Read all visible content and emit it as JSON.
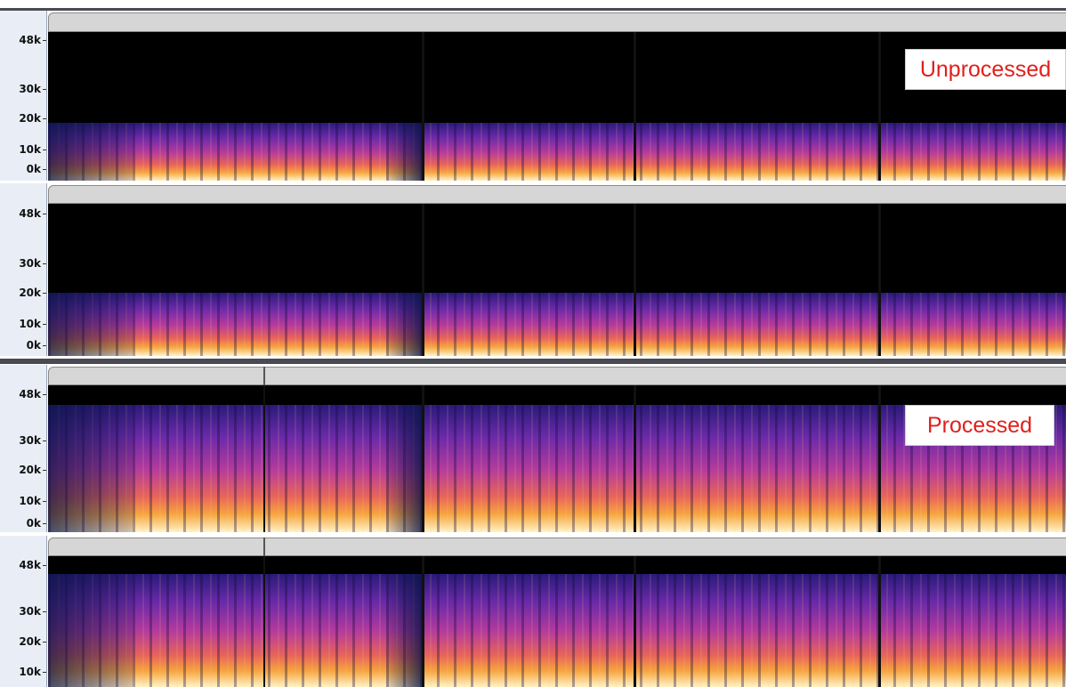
{
  "tracks": [
    {
      "ruler": [
        "48k",
        "30k",
        "20k",
        "10k",
        "0k"
      ]
    },
    {
      "ruler": [
        "48k",
        "30k",
        "20k",
        "10k",
        "0k"
      ]
    },
    {
      "ruler": [
        "48k",
        "30k",
        "20k",
        "10k",
        "0k"
      ]
    },
    {
      "ruler": [
        "48k",
        "30k",
        "20k",
        "10k"
      ]
    }
  ],
  "annotations": [
    {
      "text": "Unprocessed"
    },
    {
      "text": "Processed"
    }
  ]
}
